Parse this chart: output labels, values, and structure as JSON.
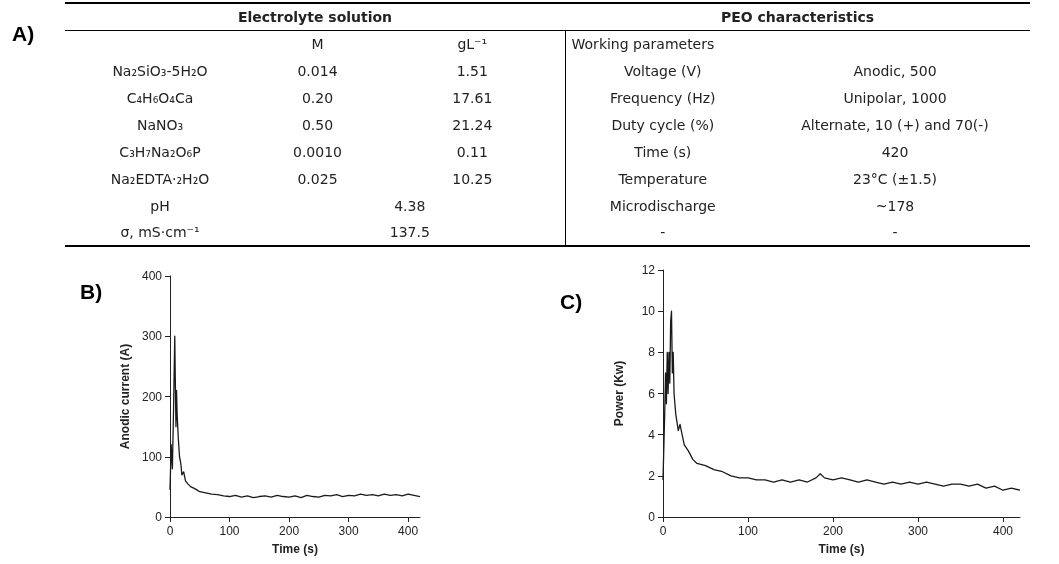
{
  "chart_data": [
    {
      "type": "other",
      "title": "A)",
      "annotations": [
        "Electrolyte solution",
        "PEO characteristics",
        "M",
        "gL⁻¹",
        "Working parameters",
        "Na₂SiO₃-5H₂O",
        "0.014",
        "1.51",
        "Voltage (V)",
        "Anodic, 500",
        "C₄H₆O₄Ca",
        "0.20",
        "17.61",
        "Frequency (Hz)",
        "Unipolar, 1000",
        "NaNO₃",
        "0.50",
        "21.24",
        "Duty cycle (%)",
        "Alternate, 10 (+) and 70(-)",
        "C₃H₇Na₂O₆P",
        "0.0010",
        "0.11",
        "Time (s)",
        "420",
        "Na₂EDTA·₂H₂O",
        "0.025",
        "10.25",
        "Temperature",
        "23°C (±1.5)",
        "pH",
        "4.38",
        "Microdischarge",
        "~178",
        "σ, mS·cm⁻¹",
        "137.5",
        "-",
        "-"
      ]
    },
    {
      "type": "line",
      "title": "B)",
      "xlabel": "Time (s)",
      "ylabel": "Anodic current (A)",
      "color": "#1a1a1a",
      "x": [
        0,
        2,
        4,
        6,
        8,
        9,
        10,
        11,
        12,
        14,
        16,
        18,
        20,
        23,
        26,
        30,
        35,
        40,
        45,
        50,
        60,
        70,
        80,
        90,
        100,
        110,
        120,
        130,
        140,
        150,
        160,
        170,
        180,
        190,
        200,
        210,
        220,
        230,
        240,
        250,
        260,
        270,
        280,
        290,
        300,
        310,
        320,
        330,
        340,
        350,
        360,
        370,
        380,
        390,
        400,
        410,
        420
      ],
      "values": [
        45,
        120,
        80,
        180,
        300,
        220,
        150,
        210,
        170,
        130,
        100,
        90,
        70,
        75,
        60,
        55,
        50,
        48,
        45,
        42,
        40,
        38,
        37,
        35,
        34,
        36,
        33,
        35,
        32,
        34,
        35,
        33,
        36,
        34,
        33,
        35,
        32,
        36,
        34,
        33,
        36,
        35,
        37,
        34,
        36,
        35,
        38,
        36,
        37,
        35,
        38,
        36,
        37,
        35,
        38,
        36,
        34
      ],
      "xlim": [
        0,
        420
      ],
      "xticks": [
        0,
        100,
        200,
        300,
        400
      ],
      "ylim": [
        0,
        400
      ],
      "yticks": [
        0,
        100,
        200,
        300,
        400
      ]
    },
    {
      "type": "line",
      "title": "C)",
      "xlabel": "Time (s)",
      "ylabel": "Power (Kw)",
      "color": "#1a1a1a",
      "x": [
        0,
        2,
        3,
        4,
        5,
        6,
        7,
        8,
        9,
        10,
        11,
        12,
        13,
        15,
        18,
        20,
        25,
        30,
        35,
        40,
        50,
        60,
        70,
        80,
        90,
        100,
        110,
        120,
        130,
        140,
        150,
        160,
        170,
        180,
        185,
        190,
        200,
        210,
        220,
        230,
        240,
        250,
        260,
        270,
        280,
        290,
        300,
        310,
        320,
        330,
        340,
        350,
        360,
        370,
        380,
        390,
        400,
        410,
        420
      ],
      "values": [
        1.8,
        5,
        7,
        5.5,
        8,
        6,
        8,
        6.5,
        9.5,
        10,
        7,
        8,
        6,
        5,
        4.2,
        4.5,
        3.5,
        3.2,
        2.8,
        2.6,
        2.5,
        2.3,
        2.2,
        2.0,
        1.9,
        1.9,
        1.8,
        1.8,
        1.7,
        1.8,
        1.7,
        1.8,
        1.7,
        1.9,
        2.1,
        1.9,
        1.8,
        1.9,
        1.8,
        1.7,
        1.8,
        1.7,
        1.6,
        1.7,
        1.6,
        1.7,
        1.6,
        1.7,
        1.6,
        1.5,
        1.6,
        1.6,
        1.5,
        1.6,
        1.4,
        1.5,
        1.3,
        1.4,
        1.3
      ],
      "xlim": [
        0,
        420
      ],
      "xticks": [
        0,
        100,
        200,
        300,
        400
      ],
      "ylim": [
        0,
        12
      ],
      "yticks": [
        0,
        2,
        4,
        6,
        8,
        10,
        12
      ]
    }
  ]
}
